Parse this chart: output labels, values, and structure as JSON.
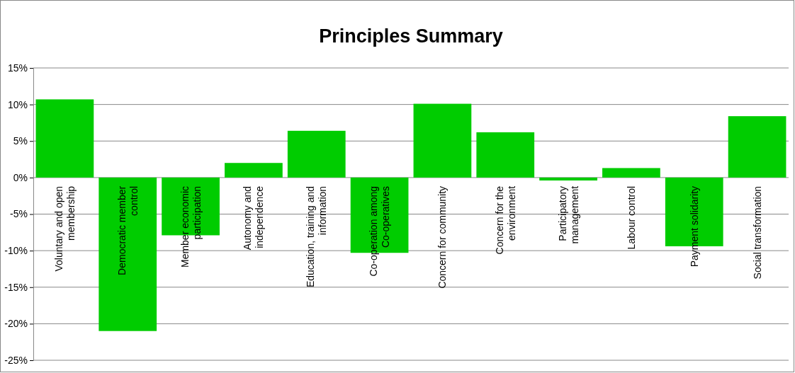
{
  "chart_data": {
    "type": "bar",
    "title": "Principles Summary",
    "categories": [
      "Voluntary and open membership",
      "Democratic member control",
      "Member economic participation",
      "Autonomy and independence",
      "Education, training and information",
      "Co-operation among Co-operatives",
      "Concern for community",
      "Concern for the environment",
      "Participatory management",
      "Labour control",
      "Payment solidarity",
      "Social transformation"
    ],
    "values": [
      10.7,
      -21,
      -7.9,
      2,
      6.4,
      -10.3,
      10.1,
      6.2,
      -0.4,
      1.3,
      -9.4,
      8.4
    ],
    "color": "#00cc00",
    "ylim": [
      -25,
      15
    ],
    "yticks": [
      {
        "value": -25,
        "label": "-25%"
      },
      {
        "value": -20,
        "label": "-20%"
      },
      {
        "value": -15,
        "label": "-15%"
      },
      {
        "value": -10,
        "label": "-10%"
      },
      {
        "value": -5,
        "label": "-5%"
      },
      {
        "value": 0,
        "label": "0%"
      },
      {
        "value": 5,
        "label": "5%"
      },
      {
        "value": 10,
        "label": "10%"
      },
      {
        "value": 15,
        "label": "15%"
      }
    ],
    "grid": "y"
  }
}
